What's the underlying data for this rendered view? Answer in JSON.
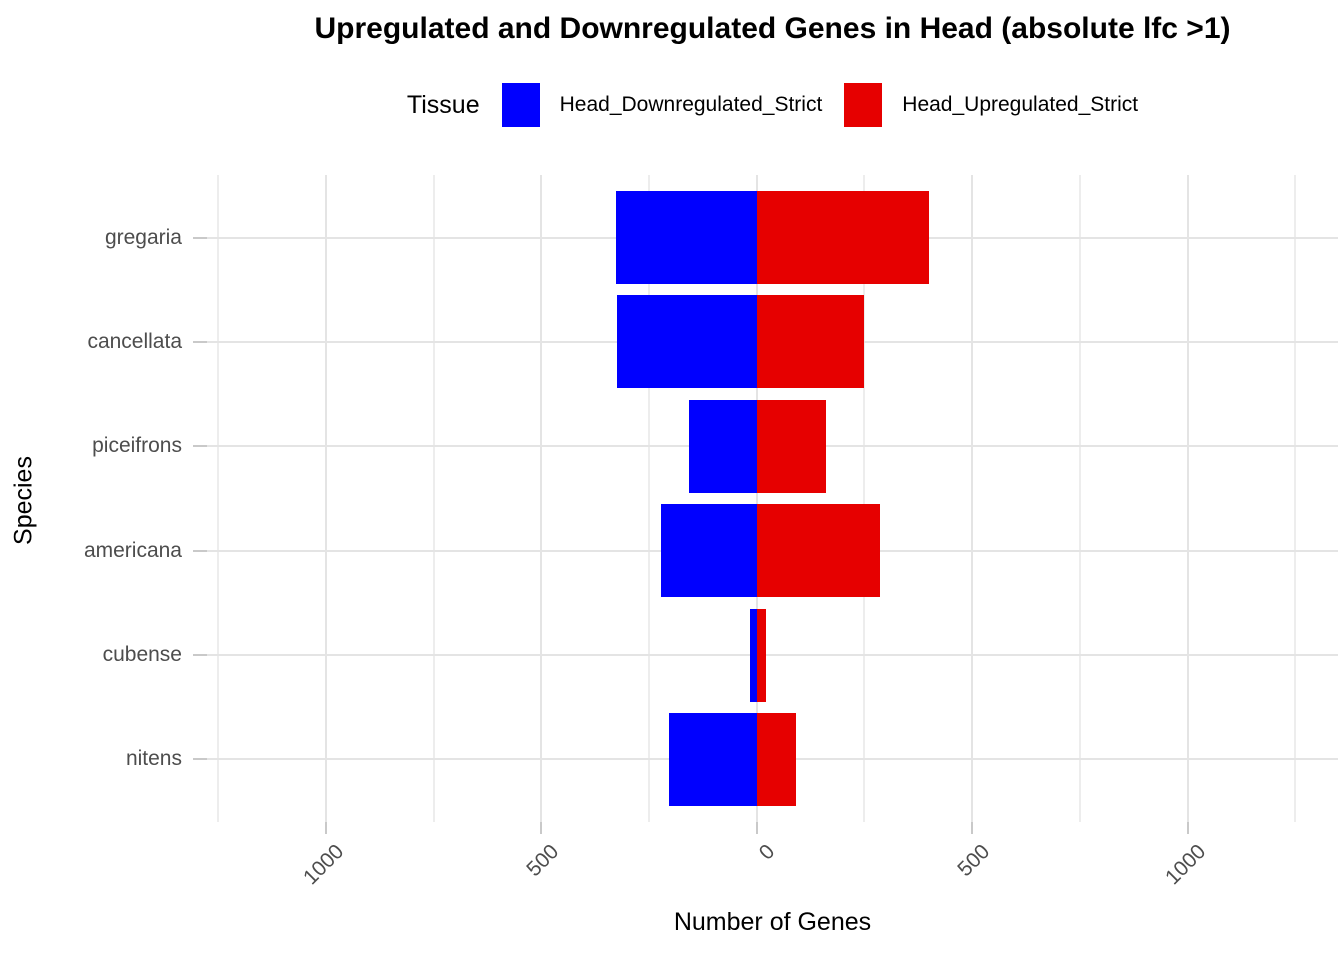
{
  "title": "Upregulated and Downregulated Genes in Head (absolute lfc >1)",
  "legend": {
    "title": "Tissue",
    "items": [
      {
        "label": "Head_Downregulated_Strict",
        "color": "#0000ff"
      },
      {
        "label": "Head_Upregulated_Strict",
        "color": "#e60000"
      }
    ]
  },
  "axes": {
    "xlabel": "Number of Genes",
    "ylabel": "Species"
  },
  "chart_data": {
    "type": "bar",
    "variant": "horizontal-diverging",
    "title": "Upregulated and Downregulated Genes in Head (absolute lfc >1)",
    "xlabel": "Number of Genes",
    "ylabel": "Species",
    "categories": [
      "gregaria",
      "cancellata",
      "piceifrons",
      "americana",
      "cubense",
      "nitens"
    ],
    "series": [
      {
        "name": "Head_Downregulated_Strict",
        "color": "#0000ff",
        "direction": "negative",
        "values": [
          327,
          325,
          156,
          223,
          16,
          204
        ]
      },
      {
        "name": "Head_Upregulated_Strict",
        "color": "#e60000",
        "direction": "positive",
        "values": [
          400,
          250,
          162,
          286,
          22,
          91
        ]
      }
    ],
    "x_ticks": [
      -1000,
      -500,
      0,
      500,
      1000
    ],
    "x_tick_labels": [
      "1000",
      "500",
      "0",
      "500",
      "1000"
    ],
    "x_minor_tick_spacing": 250,
    "xlim": [
      -1276,
      1349
    ],
    "grid": "major and minor vertical gridlines every 250, horizontal gridline per category",
    "legend_position": "top-center",
    "background": "#ffffff"
  }
}
